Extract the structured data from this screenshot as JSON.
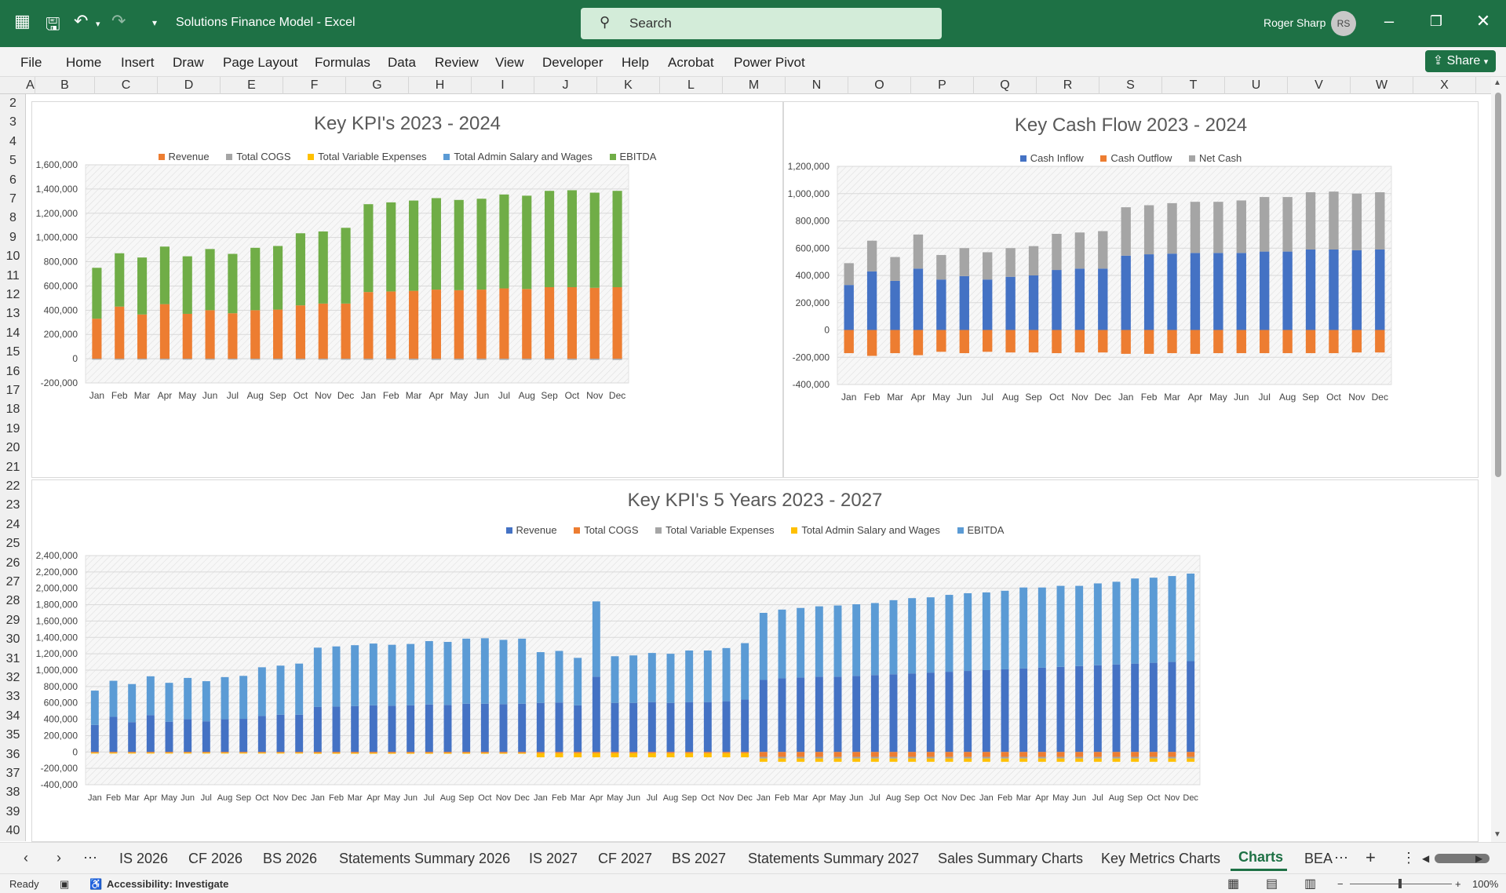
{
  "titlebar": {
    "app_title": "Solutions Finance Model  -  Excel",
    "search_placeholder": "Search",
    "user_name": "Roger Sharp",
    "user_initials": "RS",
    "brand_color": "#1e7145"
  },
  "ribbon": {
    "tabs": [
      "File",
      "Home",
      "Insert",
      "Draw",
      "Page Layout",
      "Formulas",
      "Data",
      "Review",
      "View",
      "Developer",
      "Help",
      "Acrobat",
      "Power Pivot"
    ],
    "share_label": "Share"
  },
  "grid": {
    "columns": [
      "A",
      "B",
      "C",
      "D",
      "E",
      "F",
      "G",
      "H",
      "I",
      "J",
      "K",
      "L",
      "M",
      "N",
      "O",
      "P",
      "Q",
      "R",
      "S",
      "T",
      "U",
      "V",
      "W",
      "X"
    ],
    "rows": [
      "2",
      "3",
      "4",
      "5",
      "6",
      "7",
      "8",
      "9",
      "10",
      "11",
      "12",
      "13",
      "14",
      "15",
      "16",
      "17",
      "18",
      "19",
      "20",
      "21",
      "22",
      "23",
      "24",
      "25",
      "26",
      "27",
      "28",
      "29",
      "30",
      "31",
      "32",
      "33",
      "34",
      "35",
      "36",
      "37",
      "38",
      "39",
      "40"
    ]
  },
  "chart_data": [
    {
      "type": "bar",
      "stacked": true,
      "title": "Key KPI's 2023 - 2024",
      "categories": [
        "Jan",
        "Feb",
        "Mar",
        "Apr",
        "May",
        "Jun",
        "Jul",
        "Aug",
        "Sep",
        "Oct",
        "Nov",
        "Dec",
        "Jan",
        "Feb",
        "Mar",
        "Apr",
        "May",
        "Jun",
        "Jul",
        "Aug",
        "Sep",
        "Oct",
        "Nov",
        "Dec"
      ],
      "ylim": [
        -200000,
        1600000
      ],
      "yticks": [
        "1,600,000",
        "1,400,000",
        "1,200,000",
        "1,000,000",
        "800,000",
        "600,000",
        "400,000",
        "200,000",
        "0",
        "-200,000"
      ],
      "legend_position": "top",
      "series": [
        {
          "name": "Revenue",
          "color": "#ed7d31",
          "values": [
            330000,
            430000,
            365000,
            450000,
            370000,
            400000,
            375000,
            400000,
            405000,
            440000,
            455000,
            455000,
            550000,
            555000,
            560000,
            570000,
            565000,
            570000,
            580000,
            575000,
            590000,
            590000,
            585000,
            590000
          ]
        },
        {
          "name": "Total COGS",
          "color": "#a5a5a5",
          "values": [
            -8000,
            -9000,
            -8000,
            -9000,
            -8000,
            -9000,
            -8000,
            -9000,
            -9000,
            -9000,
            -9000,
            -9000,
            -10000,
            -10000,
            -10000,
            -10000,
            -10000,
            -10000,
            -10000,
            -10000,
            -10000,
            -10000,
            -10000,
            -10000
          ]
        },
        {
          "name": "Total Variable Expenses",
          "color": "#ffc000",
          "values": [
            0,
            0,
            0,
            0,
            0,
            0,
            0,
            0,
            0,
            0,
            0,
            0,
            0,
            0,
            0,
            0,
            0,
            0,
            0,
            0,
            0,
            0,
            0,
            0
          ]
        },
        {
          "name": "Total Admin Salary and Wages",
          "color": "#5b9bd5",
          "values": [
            0,
            0,
            0,
            0,
            0,
            0,
            0,
            0,
            0,
            0,
            0,
            0,
            0,
            0,
            0,
            0,
            0,
            0,
            0,
            0,
            0,
            0,
            0,
            0
          ]
        },
        {
          "name": "EBITDA",
          "color": "#70ad47",
          "values": [
            420000,
            440000,
            470000,
            475000,
            475000,
            505000,
            490000,
            515000,
            525000,
            595000,
            595000,
            625000,
            725000,
            735000,
            745000,
            755000,
            745000,
            750000,
            775000,
            770000,
            795000,
            800000,
            785000,
            795000
          ]
        }
      ]
    },
    {
      "type": "bar",
      "stacked": true,
      "title": "Key Cash Flow 2023 - 2024",
      "categories": [
        "Jan",
        "Feb",
        "Mar",
        "Apr",
        "May",
        "Jun",
        "Jul",
        "Aug",
        "Sep",
        "Oct",
        "Nov",
        "Dec",
        "Jan",
        "Feb",
        "Mar",
        "Apr",
        "May",
        "Jun",
        "Jul",
        "Aug",
        "Sep",
        "Oct",
        "Nov",
        "Dec"
      ],
      "ylim": [
        -400000,
        1200000
      ],
      "yticks": [
        "1,200,000",
        "1,000,000",
        "800,000",
        "600,000",
        "400,000",
        "200,000",
        "0",
        "-200,000",
        "-400,000"
      ],
      "legend_position": "top",
      "series": [
        {
          "name": "Cash Inflow",
          "color": "#4472c4",
          "values": [
            330000,
            430000,
            360000,
            450000,
            370000,
            395000,
            370000,
            390000,
            400000,
            440000,
            450000,
            450000,
            545000,
            555000,
            560000,
            565000,
            565000,
            565000,
            575000,
            575000,
            590000,
            590000,
            585000,
            590000
          ]
        },
        {
          "name": "Cash Outflow",
          "color": "#ed7d31",
          "values": [
            -170000,
            -190000,
            -170000,
            -185000,
            -160000,
            -170000,
            -160000,
            -165000,
            -165000,
            -170000,
            -165000,
            -165000,
            -175000,
            -175000,
            -170000,
            -175000,
            -170000,
            -170000,
            -170000,
            -170000,
            -170000,
            -170000,
            -165000,
            -165000
          ]
        },
        {
          "name": "Net Cash",
          "color": "#a5a5a5",
          "values": [
            160000,
            225000,
            175000,
            250000,
            180000,
            205000,
            200000,
            210000,
            215000,
            265000,
            265000,
            275000,
            355000,
            360000,
            370000,
            375000,
            375000,
            385000,
            400000,
            400000,
            420000,
            425000,
            415000,
            420000
          ]
        }
      ]
    },
    {
      "type": "bar",
      "stacked": true,
      "title": "Key KPI's 5 Years 2023 - 2027",
      "categories": [
        "Jan",
        "Feb",
        "Mar",
        "Apr",
        "May",
        "Jun",
        "Jul",
        "Aug",
        "Sep",
        "Oct",
        "Nov",
        "Dec",
        "Jan",
        "Feb",
        "Mar",
        "Apr",
        "May",
        "Jun",
        "Jul",
        "Aug",
        "Sep",
        "Oct",
        "Nov",
        "Dec",
        "Jan",
        "Feb",
        "Mar",
        "Apr",
        "May",
        "Jun",
        "Jul",
        "Aug",
        "Sep",
        "Oct",
        "Nov",
        "Dec",
        "Jan",
        "Feb",
        "Mar",
        "Apr",
        "May",
        "Jun",
        "Jul",
        "Aug",
        "Sep",
        "Oct",
        "Nov",
        "Dec",
        "Jan",
        "Feb",
        "Mar",
        "Apr",
        "May",
        "Jun",
        "Jul",
        "Aug",
        "Sep",
        "Oct",
        "Nov",
        "Dec"
      ],
      "ylim": [
        -400000,
        2400000
      ],
      "yticks": [
        "2,400,000",
        "2,200,000",
        "2,000,000",
        "1,800,000",
        "1,600,000",
        "1,400,000",
        "1,200,000",
        "1,000,000",
        "800,000",
        "600,000",
        "400,000",
        "200,000",
        "0",
        "-200,000",
        "-400,000"
      ],
      "legend_position": "top",
      "series": [
        {
          "name": "Revenue",
          "color": "#4472c4",
          "values": [
            330000,
            430000,
            365000,
            450000,
            370000,
            400000,
            375000,
            400000,
            405000,
            440000,
            455000,
            455000,
            550000,
            555000,
            560000,
            570000,
            565000,
            570000,
            580000,
            575000,
            590000,
            590000,
            585000,
            590000,
            600000,
            605000,
            570000,
            920000,
            600000,
            600000,
            610000,
            600000,
            610000,
            610000,
            620000,
            640000,
            880000,
            900000,
            910000,
            920000,
            920000,
            930000,
            940000,
            950000,
            960000,
            970000,
            980000,
            990000,
            1000000,
            1010000,
            1020000,
            1030000,
            1040000,
            1050000,
            1060000,
            1070000,
            1080000,
            1090000,
            1100000,
            1110000
          ]
        },
        {
          "name": "Total COGS",
          "color": "#ed7d31",
          "values": [
            -10000,
            -10000,
            -10000,
            -10000,
            -10000,
            -10000,
            -10000,
            -10000,
            -10000,
            -10000,
            -10000,
            -10000,
            -12000,
            -12000,
            -12000,
            -12000,
            -12000,
            -12000,
            -12000,
            -12000,
            -12000,
            -12000,
            -12000,
            -12000,
            -15000,
            -15000,
            -15000,
            -15000,
            -15000,
            -15000,
            -15000,
            -15000,
            -15000,
            -15000,
            -15000,
            -15000,
            -60000,
            -60000,
            -60000,
            -60000,
            -60000,
            -60000,
            -60000,
            -60000,
            -60000,
            -60000,
            -60000,
            -60000,
            -60000,
            -60000,
            -60000,
            -60000,
            -60000,
            -60000,
            -60000,
            -60000,
            -60000,
            -60000,
            -60000,
            -60000
          ]
        },
        {
          "name": "Total Variable Expenses",
          "color": "#a5a5a5",
          "values": [
            0,
            0,
            0,
            0,
            0,
            0,
            0,
            0,
            0,
            0,
            0,
            0,
            0,
            0,
            0,
            0,
            0,
            0,
            0,
            0,
            0,
            0,
            0,
            0,
            0,
            0,
            0,
            0,
            0,
            0,
            0,
            0,
            0,
            0,
            0,
            0,
            -20000,
            -20000,
            -20000,
            -20000,
            -20000,
            -20000,
            -20000,
            -20000,
            -20000,
            -20000,
            -20000,
            -20000,
            -20000,
            -20000,
            -20000,
            -20000,
            -20000,
            -20000,
            -20000,
            -20000,
            -20000,
            -20000,
            -20000,
            -20000
          ]
        },
        {
          "name": "Total Admin Salary and Wages",
          "color": "#ffc000",
          "values": [
            -5000,
            -5000,
            -5000,
            -5000,
            -5000,
            -5000,
            -5000,
            -5000,
            -5000,
            -5000,
            -5000,
            -5000,
            -5000,
            -5000,
            -5000,
            -5000,
            -5000,
            -5000,
            -5000,
            -5000,
            -5000,
            -5000,
            -5000,
            -5000,
            -50000,
            -50000,
            -50000,
            -50000,
            -50000,
            -50000,
            -50000,
            -50000,
            -50000,
            -50000,
            -50000,
            -50000,
            -40000,
            -40000,
            -40000,
            -40000,
            -40000,
            -40000,
            -40000,
            -40000,
            -40000,
            -40000,
            -40000,
            -40000,
            -40000,
            -40000,
            -40000,
            -40000,
            -40000,
            -40000,
            -40000,
            -40000,
            -40000,
            -40000,
            -40000,
            -40000
          ]
        },
        {
          "name": "EBITDA",
          "color": "#5b9bd5",
          "values": [
            420000,
            440000,
            465000,
            475000,
            475000,
            505000,
            490000,
            515000,
            525000,
            595000,
            600000,
            625000,
            725000,
            735000,
            745000,
            755000,
            745000,
            750000,
            775000,
            770000,
            795000,
            800000,
            785000,
            795000,
            620000,
            630000,
            580000,
            920000,
            570000,
            580000,
            600000,
            600000,
            630000,
            630000,
            650000,
            690000,
            820000,
            840000,
            850000,
            860000,
            870000,
            875000,
            880000,
            905000,
            920000,
            920000,
            940000,
            950000,
            950000,
            960000,
            990000,
            980000,
            990000,
            980000,
            1000000,
            1010000,
            1040000,
            1040000,
            1050000,
            1070000
          ]
        }
      ]
    }
  ],
  "sheet_tabs": {
    "tabs": [
      "IS 2026",
      "CF 2026",
      "BS 2026",
      "Statements Summary 2026",
      "IS 2027",
      "CF 2027",
      "BS 2027",
      "Statements Summary 2027",
      "Sales Summary Charts",
      "Key Metrics Charts",
      "Charts",
      "BEA"
    ],
    "active": "Charts"
  },
  "statusbar": {
    "ready": "Ready",
    "accessibility": "Accessibility: Investigate",
    "zoom": "100%"
  }
}
